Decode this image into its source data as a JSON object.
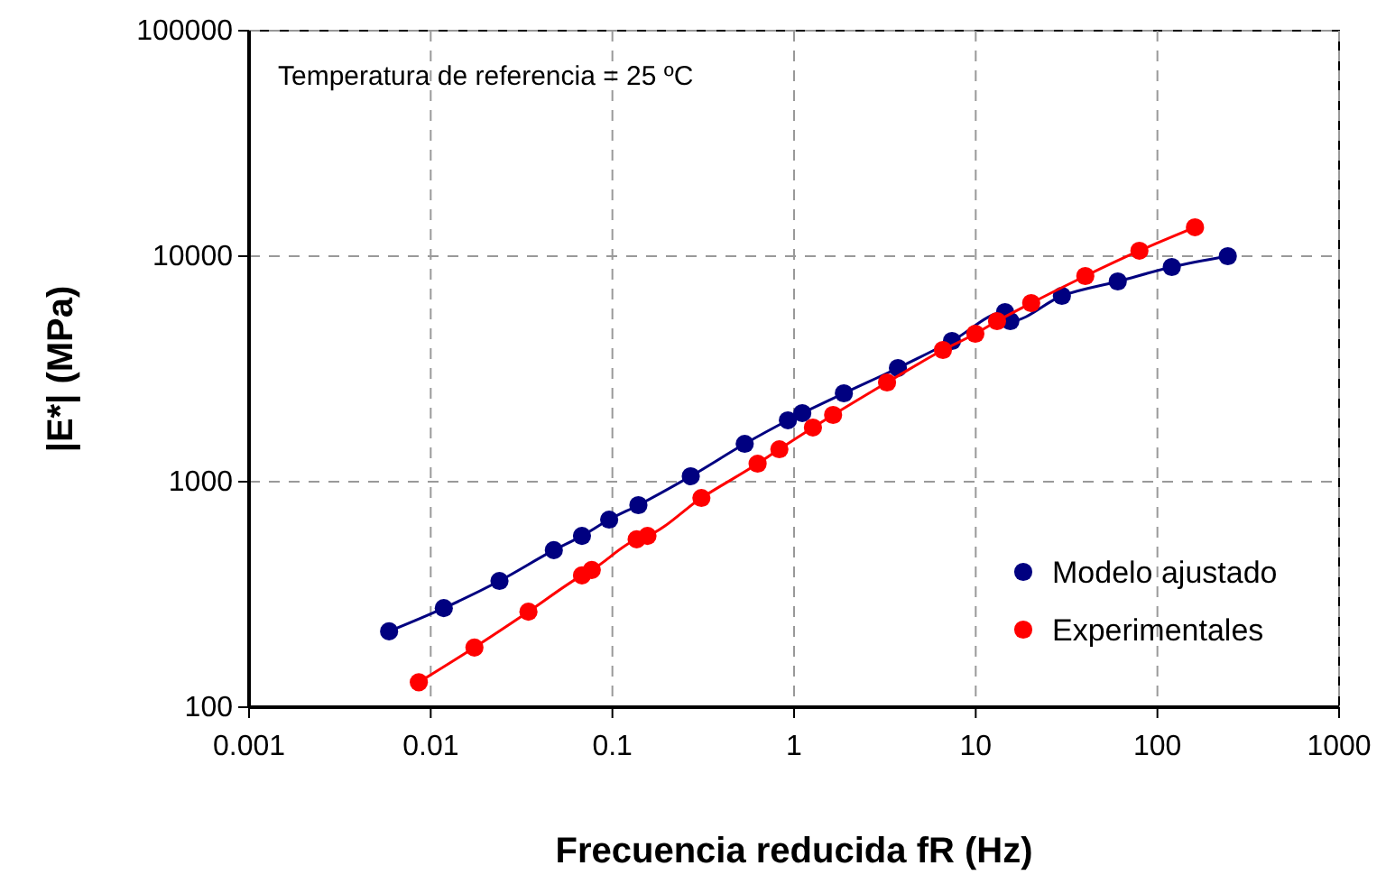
{
  "chart_data": {
    "type": "line",
    "xlabel": "Frecuencia reducida fR (Hz)",
    "ylabel": "|E*| (MPa)",
    "log": "xy",
    "xlim": [
      0.001,
      1000
    ],
    "xticks": [
      0.001,
      0.01,
      0.1,
      1,
      10,
      100,
      1000
    ],
    "ylim": [
      100,
      100000
    ],
    "yticks": [
      100,
      1000,
      10000,
      100000
    ],
    "grid": true,
    "legend": "bottom right",
    "marker": "circle",
    "annotations": [
      "Temperatura de referencia = 25 ºC"
    ],
    "series": [
      {
        "name": "Modelo ajustado",
        "color": "#000080",
        "x": [
          0.0059,
          0.0118,
          0.0239,
          0.0476,
          0.068,
          0.096,
          0.139,
          0.27,
          0.535,
          0.925,
          1.11,
          1.88,
          3.73,
          7.4,
          14.5,
          15.5,
          29.8,
          60.5,
          120,
          244
        ],
        "values": [
          217,
          275,
          363,
          497,
          575,
          679,
          787,
          1057,
          1472,
          1871,
          2014,
          2466,
          3192,
          4207,
          5649,
          5152,
          6668,
          7727,
          8954,
          10000
        ]
      },
      {
        "name": "Experimentales",
        "color": "#ff0000",
        "x": [
          0.0086,
          0.0174,
          0.0345,
          0.068,
          0.077,
          0.136,
          0.156,
          0.309,
          0.63,
          0.83,
          1.27,
          1.64,
          3.25,
          6.6,
          9.95,
          13.1,
          20.2,
          40.1,
          79.6,
          161
        ],
        "values": [
          129,
          184,
          265,
          384,
          406,
          555,
          575,
          847,
          1202,
          1393,
          1738,
          1977,
          2754,
          3837,
          4529,
          5152,
          6194,
          8166,
          10570,
          13430
        ]
      }
    ]
  }
}
